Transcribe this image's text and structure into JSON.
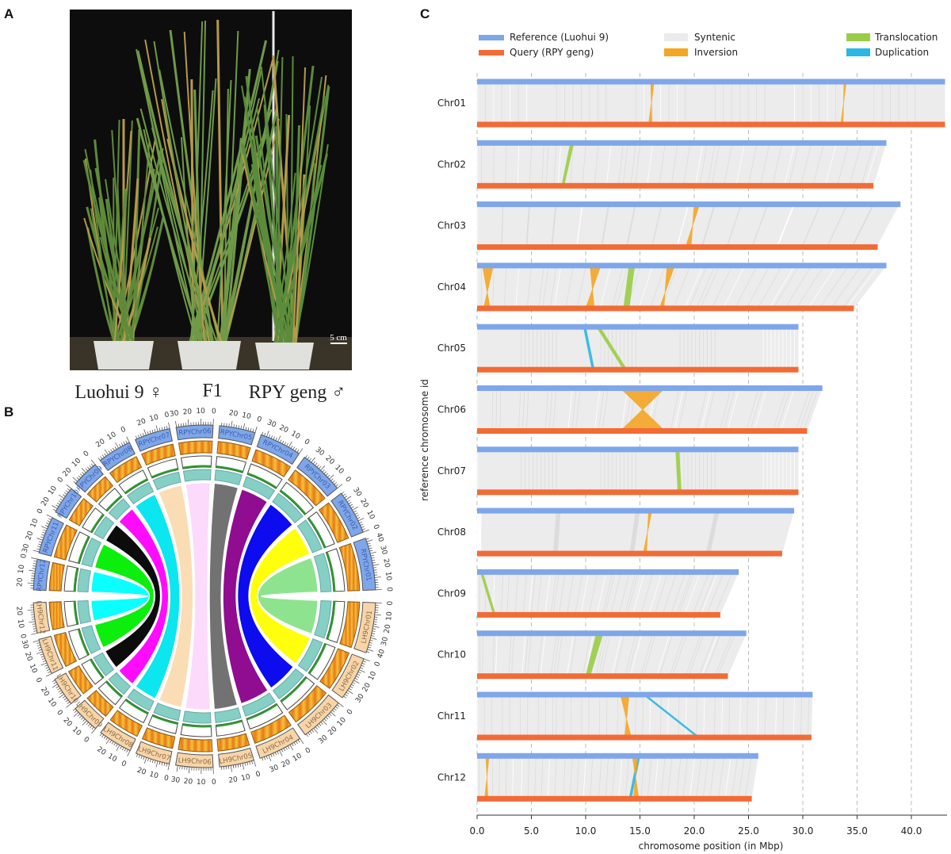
{
  "panels": {
    "a": "A",
    "b": "B",
    "c": "C"
  },
  "photo": {
    "scale_bar": "5 cm",
    "labels": [
      "Luohui 9 ♀",
      "F1",
      "RPY geng ♂"
    ]
  },
  "circos": {
    "upper_prefix": "RPYChr",
    "lower_prefix": "LH9Chr",
    "chromosomes": [
      "01",
      "02",
      "03",
      "04",
      "05",
      "06",
      "07",
      "08",
      "09",
      "10",
      "11",
      "12"
    ],
    "upper_lengths": [
      43.1,
      36.5,
      36.9,
      34.7,
      29.6,
      30.4,
      29.6,
      28.1,
      22.4,
      23.1,
      30.8,
      25.3
    ],
    "lower_lengths": [
      43.1,
      37.7,
      39.0,
      37.7,
      29.6,
      31.8,
      29.6,
      29.2,
      24.1,
      24.8,
      30.9,
      25.9
    ],
    "ticks": [
      0,
      10,
      20,
      30,
      40
    ],
    "chord_colors": [
      "#88e388",
      "#ffff00",
      "#0000ee",
      "#8b008b",
      "#6b6b6b",
      "#fbd9fb",
      "#fadcb0",
      "#00e5ee",
      "#ff00ff",
      "#000000",
      "#00ee00",
      "#00ffff"
    ],
    "colors": {
      "upper_band": "#7ea6ea",
      "lower_band": "#f8d5a8",
      "heat_a": "#f5c236",
      "heat_b": "#e8781a",
      "gc": "#2e9a2e",
      "density": "#86cfc5"
    }
  },
  "chart_data": {
    "type": "synteny",
    "xlabel": "chromosome position (in Mbp)",
    "ylabel": "reference chromosome id",
    "xlim": [
      0,
      43.5
    ],
    "xticks": [
      "0.0",
      "5.0",
      "10.0",
      "15.0",
      "20.0",
      "25.0",
      "30.0",
      "35.0",
      "40.0"
    ],
    "grid": "vertical dashed",
    "legend": {
      "placement": "top",
      "entries": [
        {
          "label": "Reference (Luohui 9)",
          "color": "#7ea6ea"
        },
        {
          "label": "Query (RPY geng)",
          "color": "#f26b35"
        },
        {
          "label": "Syntenic",
          "color": "#ebebeb"
        },
        {
          "label": "Inversion",
          "color": "#f5a623"
        },
        {
          "label": "Translocation",
          "color": "#9acd45"
        },
        {
          "label": "Duplication",
          "color": "#2bb6e6"
        }
      ]
    },
    "chromosomes": [
      "Chr01",
      "Chr02",
      "Chr03",
      "Chr04",
      "Chr05",
      "Chr06",
      "Chr07",
      "Chr08",
      "Chr09",
      "Chr10",
      "Chr11",
      "Chr12"
    ],
    "reference_length": [
      43.1,
      37.7,
      39.0,
      37.7,
      29.6,
      31.8,
      29.6,
      29.2,
      24.1,
      24.8,
      30.9,
      25.9
    ],
    "query_length": [
      43.1,
      36.5,
      36.9,
      34.7,
      29.6,
      30.4,
      29.6,
      28.1,
      22.4,
      23.1,
      30.8,
      25.3
    ],
    "features": [
      {
        "chr": "Chr01",
        "type": "Inversion",
        "ref": [
          16.0,
          16.3
        ],
        "query": [
          16.1,
          15.8
        ]
      },
      {
        "chr": "Chr01",
        "type": "Inversion",
        "ref": [
          33.8,
          34.0
        ],
        "query": [
          33.7,
          33.5
        ]
      },
      {
        "chr": "Chr02",
        "type": "Translocation",
        "ref": [
          8.6,
          8.9
        ],
        "query": [
          7.8,
          8.0
        ]
      },
      {
        "chr": "Chr03",
        "type": "Inversion",
        "ref": [
          20.0,
          20.5
        ],
        "query": [
          19.7,
          19.2
        ]
      },
      {
        "chr": "Chr04",
        "type": "Inversion",
        "ref": [
          0.5,
          1.5
        ],
        "query": [
          1.2,
          0.6
        ]
      },
      {
        "chr": "Chr04",
        "type": "Inversion",
        "ref": [
          10.4,
          11.4
        ],
        "query": [
          10.8,
          10.0
        ]
      },
      {
        "chr": "Chr04",
        "type": "Translocation",
        "ref": [
          14.0,
          14.5
        ],
        "query": [
          13.5,
          14.0
        ]
      },
      {
        "chr": "Chr04",
        "type": "Inversion",
        "ref": [
          17.5,
          18.2
        ],
        "query": [
          17.2,
          16.8
        ]
      },
      {
        "chr": "Chr05",
        "type": "Duplication",
        "ref": [
          9.8,
          10.0
        ],
        "query": [
          10.6,
          10.8
        ]
      },
      {
        "chr": "Chr05",
        "type": "Translocation",
        "ref": [
          11.0,
          11.3
        ],
        "query": [
          13.5,
          13.8
        ]
      },
      {
        "chr": "Chr06",
        "type": "Inversion",
        "ref": [
          13.2,
          17.3
        ],
        "query": [
          17.3,
          13.2
        ]
      },
      {
        "chr": "Chr07",
        "type": "Translocation",
        "ref": [
          18.3,
          18.6
        ],
        "query": [
          18.5,
          18.8
        ]
      },
      {
        "chr": "Chr08",
        "type": "Inversion",
        "ref": [
          15.8,
          16.1
        ],
        "query": [
          15.6,
          15.3
        ]
      },
      {
        "chr": "Chr09",
        "type": "Translocation",
        "ref": [
          0.3,
          0.5
        ],
        "query": [
          1.5,
          1.7
        ]
      },
      {
        "chr": "Chr10",
        "type": "Translocation",
        "ref": [
          11.0,
          11.6
        ],
        "query": [
          10.0,
          10.4
        ]
      },
      {
        "chr": "Chr11",
        "type": "Inversion",
        "ref": [
          13.2,
          14.0
        ],
        "query": [
          14.2,
          13.6
        ]
      },
      {
        "chr": "Chr11",
        "type": "Duplication",
        "ref": [
          15.3,
          15.5
        ],
        "query": [
          20.3,
          20.5
        ]
      },
      {
        "chr": "Chr12",
        "type": "Inversion",
        "ref": [
          0.8,
          1.1
        ],
        "query": [
          1.0,
          0.7
        ]
      },
      {
        "chr": "Chr12",
        "type": "Duplication",
        "ref": [
          14.8,
          15.0
        ],
        "query": [
          14.0,
          14.2
        ]
      },
      {
        "chr": "Chr12",
        "type": "Inversion",
        "ref": [
          14.3,
          14.8
        ],
        "query": [
          14.9,
          14.4
        ]
      }
    ]
  }
}
